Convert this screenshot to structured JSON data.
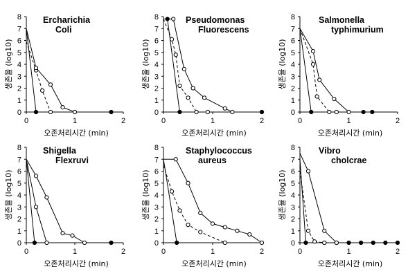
{
  "chart_data": [
    {
      "type": "line",
      "title": [
        "Ercharichia",
        "Coli"
      ],
      "xlabel": "오존처리시간 (min)",
      "ylabel": "생존율 (log10)",
      "xlim": [
        0,
        2.0
      ],
      "ylim": [
        0,
        8
      ],
      "xticks": [
        "0",
        "1",
        "2"
      ],
      "yticks": [
        "0",
        "1",
        "2",
        "3",
        "4",
        "5",
        "6",
        "7",
        "8"
      ],
      "series": [
        {
          "style": "solid",
          "marker": "filled",
          "x": [
            0,
            0.2,
            1.75
          ],
          "y": [
            7.0,
            0,
            0
          ]
        },
        {
          "style": "dashed",
          "marker": "open",
          "x": [
            0,
            0.2,
            0.33,
            0.5
          ],
          "y": [
            5.9,
            3.5,
            1.8,
            0
          ]
        },
        {
          "style": "solid",
          "marker": "open",
          "x": [
            0,
            0.2,
            0.5,
            0.75,
            1.0
          ],
          "y": [
            7.0,
            3.7,
            2.3,
            0.4,
            0
          ]
        }
      ]
    },
    {
      "type": "line",
      "title": [
        "Pseudomonas",
        "Fluorescens"
      ],
      "xlabel": "오존처리시간 (min)",
      "ylabel": "생존율 (log10)",
      "xlim": [
        0,
        2.0
      ],
      "ylim": [
        0,
        8
      ],
      "xticks": [
        "0",
        "1",
        "2"
      ],
      "yticks": [
        "0",
        "1",
        "2",
        "3",
        "4",
        "5",
        "6",
        "7",
        "8"
      ],
      "series": [
        {
          "style": "solid",
          "marker": "filled",
          "x": [
            0,
            0.08,
            0.33,
            2.0
          ],
          "y": [
            7.8,
            7.8,
            0,
            0
          ]
        },
        {
          "style": "dashed",
          "marker": "open",
          "x": [
            0,
            0.17,
            0.25,
            0.33,
            0.5,
            0.67,
            0.9
          ],
          "y": [
            7.8,
            6.1,
            4.8,
            2.2,
            1.2,
            0,
            0
          ]
        },
        {
          "style": "solid",
          "marker": "open",
          "x": [
            0,
            0.2,
            0.42,
            0.6,
            0.83,
            1.25,
            1.4
          ],
          "y": [
            7.8,
            7.8,
            3.6,
            2.0,
            1.2,
            0.3,
            0
          ]
        }
      ]
    },
    {
      "type": "line",
      "title": [
        "Salmonella",
        "typhimurium"
      ],
      "xlabel": "오존처리시간 (min)",
      "ylabel": "생존율 (log10)",
      "xlim": [
        0,
        2.0
      ],
      "ylim": [
        0,
        8
      ],
      "xticks": [
        "0",
        "1",
        "2"
      ],
      "yticks": [
        "0",
        "1",
        "2",
        "3",
        "4",
        "5",
        "6",
        "7",
        "8"
      ],
      "series": [
        {
          "style": "solid",
          "marker": "filled",
          "x": [
            0,
            0.23,
            1.3,
            1.48
          ],
          "y": [
            7.0,
            0,
            0,
            0
          ]
        },
        {
          "style": "dashed",
          "marker": "open",
          "x": [
            0,
            0.27,
            0.35,
            0.6,
            0.75
          ],
          "y": [
            7.0,
            4.0,
            1.3,
            0,
            0
          ]
        },
        {
          "style": "solid",
          "marker": "open",
          "x": [
            0,
            0.27,
            0.4,
            0.7,
            1.0
          ],
          "y": [
            7.0,
            5.1,
            2.7,
            1.1,
            0
          ]
        }
      ]
    },
    {
      "type": "line",
      "title": [
        "Shigella",
        "Flexruvi"
      ],
      "xlabel": "오존처리시간 (min)",
      "ylabel": "생존율 (log10)",
      "xlim": [
        0,
        2.0
      ],
      "ylim": [
        0,
        8
      ],
      "xticks": [
        "0",
        "1",
        "2"
      ],
      "yticks": [
        "0",
        "1",
        "2",
        "3",
        "4",
        "5",
        "6",
        "7",
        "8"
      ],
      "series": [
        {
          "style": "solid",
          "marker": "filled",
          "x": [
            0,
            0.17,
            1.75
          ],
          "y": [
            7.0,
            0,
            0
          ]
        },
        {
          "style": "solid",
          "marker": "open",
          "x": [
            0,
            0.2,
            0.42
          ],
          "y": [
            7.0,
            3.0,
            0
          ]
        },
        {
          "style": "solid",
          "marker": "open",
          "x": [
            0,
            0.2,
            0.42,
            0.75,
            0.95,
            1.2
          ],
          "y": [
            7.0,
            5.6,
            3.8,
            0.8,
            0.6,
            0
          ]
        }
      ]
    },
    {
      "type": "line",
      "title": [
        "Staphylococcus",
        "aureus"
      ],
      "xlabel": "오존처리시간 (min)",
      "ylabel": "생존율 (log10)",
      "xlim": [
        0,
        2.0
      ],
      "ylim": [
        0,
        8
      ],
      "xticks": [
        "0",
        "1",
        "2"
      ],
      "yticks": [
        "0",
        "1",
        "2",
        "3",
        "4",
        "5",
        "6",
        "7",
        "8"
      ],
      "series": [
        {
          "style": "solid",
          "marker": "filled",
          "x": [
            0,
            0.27
          ],
          "y": [
            7.0,
            0
          ]
        },
        {
          "style": "dashed",
          "marker": "open",
          "x": [
            0,
            0.17,
            0.33,
            0.5,
            0.75,
            1.25
          ],
          "y": [
            6.5,
            4.3,
            2.7,
            1.5,
            0.9,
            0
          ]
        },
        {
          "style": "solid",
          "marker": "open",
          "x": [
            0,
            0.25,
            0.5,
            0.75,
            1.0,
            1.25,
            1.5,
            1.75,
            2.0
          ],
          "y": [
            7.0,
            7.0,
            5.0,
            2.5,
            1.6,
            1.3,
            1.0,
            0.7,
            0
          ]
        }
      ]
    },
    {
      "type": "line",
      "title": [
        "Vibro",
        "cholcrae"
      ],
      "xlabel": "오존처리시간 (min)",
      "ylabel": "생존율 (log10)",
      "xlim": [
        0,
        2.0
      ],
      "ylim": [
        0,
        8
      ],
      "xticks": [
        "0",
        "1",
        "2"
      ],
      "yticks": [
        "0",
        "1",
        "2",
        "3",
        "4",
        "5",
        "6",
        "7",
        "8"
      ],
      "series": [
        {
          "style": "solid",
          "marker": "filled",
          "x": [
            0,
            0.12,
            0.5,
            0.75,
            1.0,
            1.25,
            1.5,
            1.75,
            2.0
          ],
          "y": [
            7.0,
            0,
            0,
            0,
            0,
            0,
            0,
            0,
            0
          ]
        },
        {
          "style": "dashed",
          "marker": "open",
          "x": [
            0,
            0.17,
            0.3,
            0.5
          ],
          "y": [
            6.0,
            1.0,
            0.1,
            0
          ]
        },
        {
          "style": "solid",
          "marker": "open",
          "x": [
            0,
            0.17,
            0.5,
            0.75
          ],
          "y": [
            7.5,
            6.0,
            1.0,
            0
          ]
        }
      ]
    }
  ]
}
